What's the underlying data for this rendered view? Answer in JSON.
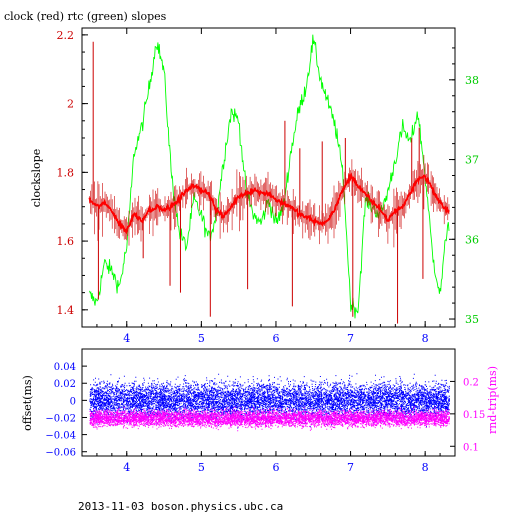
{
  "colors": {
    "clock": "#ff0000",
    "clock_dark": "#cc0000",
    "rtc": "#00ff00",
    "offset": "#0000ff",
    "roundtrip": "#ff00ff",
    "frame": "#000000"
  },
  "footer": "2013-11-03  boson.physics.ubc.ca",
  "chart_data": [
    {
      "type": "line",
      "title": "clock (red) rtc (green) slopes",
      "ylabel": "clockslope",
      "xlim": [
        3.4,
        8.4
      ],
      "ylim": [
        1.35,
        2.22
      ],
      "y2lim": [
        34.9,
        38.65
      ],
      "x_ticks": [
        "4",
        "5",
        "6",
        "7",
        "8"
      ],
      "y_ticks": [
        "1.4",
        "1.6",
        "1.8",
        "2",
        "2.2"
      ],
      "y2_ticks": [
        "35",
        "36",
        "37",
        "38"
      ],
      "series": [
        {
          "name": "clock",
          "axis": "left",
          "x": [
            3.5,
            3.6,
            3.7,
            3.8,
            3.9,
            4.0,
            4.1,
            4.2,
            4.3,
            4.4,
            4.5,
            4.6,
            4.7,
            4.8,
            4.9,
            5.0,
            5.1,
            5.2,
            5.3,
            5.4,
            5.5,
            5.6,
            5.7,
            5.8,
            5.9,
            6.0,
            6.1,
            6.2,
            6.3,
            6.4,
            6.5,
            6.6,
            6.7,
            6.8,
            6.9,
            7.0,
            7.1,
            7.2,
            7.3,
            7.4,
            7.5,
            7.6,
            7.7,
            7.8,
            7.9,
            8.0,
            8.1,
            8.2,
            8.3
          ],
          "y": [
            1.72,
            1.7,
            1.71,
            1.69,
            1.65,
            1.63,
            1.68,
            1.66,
            1.69,
            1.7,
            1.69,
            1.7,
            1.72,
            1.75,
            1.76,
            1.75,
            1.74,
            1.69,
            1.67,
            1.7,
            1.73,
            1.74,
            1.75,
            1.74,
            1.74,
            1.72,
            1.71,
            1.7,
            1.68,
            1.67,
            1.66,
            1.65,
            1.66,
            1.7,
            1.75,
            1.79,
            1.76,
            1.74,
            1.71,
            1.69,
            1.66,
            1.69,
            1.7,
            1.74,
            1.78,
            1.79,
            1.75,
            1.71,
            1.69
          ]
        },
        {
          "name": "rtc",
          "axis": "right",
          "x": [
            3.5,
            3.6,
            3.7,
            3.8,
            3.9,
            4.0,
            4.1,
            4.2,
            4.3,
            4.4,
            4.5,
            4.6,
            4.7,
            4.8,
            4.9,
            5.0,
            5.1,
            5.2,
            5.3,
            5.4,
            5.5,
            5.6,
            5.7,
            5.8,
            5.9,
            6.0,
            6.1,
            6.2,
            6.3,
            6.4,
            6.5,
            6.6,
            6.7,
            6.8,
            6.9,
            7.0,
            7.1,
            7.2,
            7.3,
            7.4,
            7.5,
            7.6,
            7.7,
            7.8,
            7.9,
            8.0,
            8.1,
            8.2,
            8.3
          ],
          "y": [
            35.3,
            35.2,
            35.7,
            35.6,
            35.4,
            35.9,
            37.1,
            37.4,
            37.9,
            38.5,
            38.1,
            36.8,
            36.1,
            35.9,
            36.5,
            36.3,
            36.0,
            36.3,
            37.0,
            37.6,
            37.5,
            36.6,
            36.3,
            36.2,
            36.5,
            36.2,
            36.4,
            37.1,
            37.6,
            37.9,
            38.5,
            38.0,
            37.7,
            37.4,
            36.8,
            35.2,
            35.1,
            36.5,
            36.4,
            36.3,
            36.6,
            37.0,
            37.4,
            37.2,
            37.6,
            36.8,
            35.8,
            35.3,
            36.2
          ]
        },
        {
          "name": "spikes",
          "axis": "left",
          "x": [
            3.55,
            3.62,
            4.22,
            4.58,
            4.72,
            5.12,
            5.62,
            6.12,
            6.22,
            6.32,
            6.62,
            6.93,
            7.03,
            7.63,
            7.82,
            7.92,
            7.97
          ],
          "y": [
            2.18,
            1.43,
            1.55,
            1.47,
            1.45,
            1.38,
            1.46,
            1.95,
            1.41,
            1.87,
            1.89,
            1.9,
            1.38,
            1.36,
            1.9,
            1.93,
            1.49
          ]
        }
      ]
    },
    {
      "type": "scatter",
      "ylabel": "offset(ms)",
      "y2label": "rnd-trip(ms)",
      "xlim": [
        3.4,
        8.4
      ],
      "ylim": [
        -0.065,
        0.06
      ],
      "y2lim": [
        0.085,
        0.25
      ],
      "x_ticks": [
        "4",
        "5",
        "6",
        "7",
        "8"
      ],
      "y_ticks": [
        "0.04",
        "0.02",
        "0",
        "−0.02",
        "−0.04",
        "−0.06"
      ],
      "y2_ticks": [
        "0.2",
        "0.15",
        "0.1"
      ],
      "series": [
        {
          "name": "offset",
          "axis": "left",
          "center": 0.0,
          "spread": 0.022
        },
        {
          "name": "rnd-trip",
          "axis": "right",
          "center": 0.143,
          "spread": 0.013
        }
      ]
    }
  ]
}
